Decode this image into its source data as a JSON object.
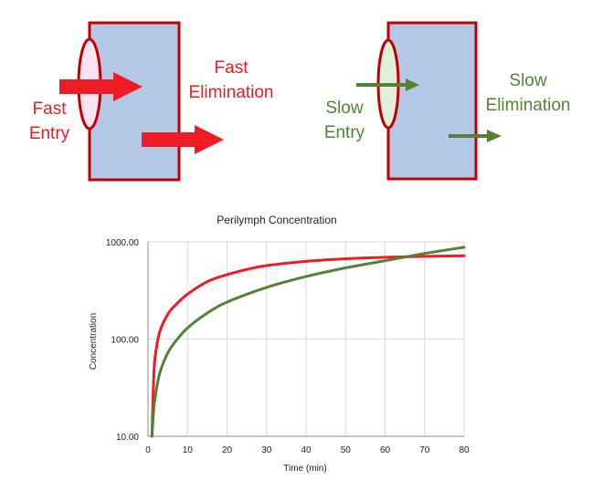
{
  "diagram": {
    "fast": {
      "entry_lines": [
        "Fast",
        "Entry"
      ],
      "elimination_lines": [
        "Fast",
        "Elimination"
      ],
      "color": "#ee1c25"
    },
    "slow": {
      "entry_lines": [
        "Slow",
        "Entry"
      ],
      "elimination_lines": [
        "Slow",
        "Elimination"
      ],
      "color": "#548235"
    },
    "compartment_fill": "#b4c7e7",
    "compartment_border": "#c00000",
    "fast_ellipse_fill": "#fbe3f1",
    "slow_ellipse_fill": "#e2efda"
  },
  "chart_data": {
    "type": "line",
    "title": "Perilymph Concentration",
    "xlabel": "Time (min)",
    "ylabel": "Concentration",
    "xlim": [
      0,
      80
    ],
    "ylim": [
      10,
      1000
    ],
    "y_scale": "log",
    "grid": "vertical",
    "legend": "none",
    "x_ticks": [
      "0",
      "10",
      "20",
      "30",
      "40",
      "50",
      "60",
      "70",
      "80"
    ],
    "y_ticks": [
      {
        "value": 10,
        "label": "10.00"
      },
      {
        "value": 100,
        "label": "100.00"
      },
      {
        "value": 1000,
        "label": "1000.00"
      }
    ],
    "series": [
      {
        "color": "#ee1c25",
        "x": [
          1,
          1.5,
          2,
          3,
          5,
          7,
          10,
          15,
          20,
          25,
          30,
          40,
          50,
          60,
          70,
          80
        ],
        "y": [
          10,
          45,
          75,
          120,
          180,
          225,
          290,
          390,
          460,
          520,
          570,
          630,
          670,
          695,
          710,
          720
        ]
      },
      {
        "color": "#548235",
        "x": [
          1,
          1.5,
          2,
          3,
          5,
          7,
          10,
          15,
          20,
          30,
          40,
          50,
          60,
          70,
          80
        ],
        "y": [
          10,
          20,
          28,
          45,
          72,
          95,
          130,
          185,
          240,
          340,
          440,
          540,
          640,
          760,
          880
        ]
      }
    ]
  }
}
